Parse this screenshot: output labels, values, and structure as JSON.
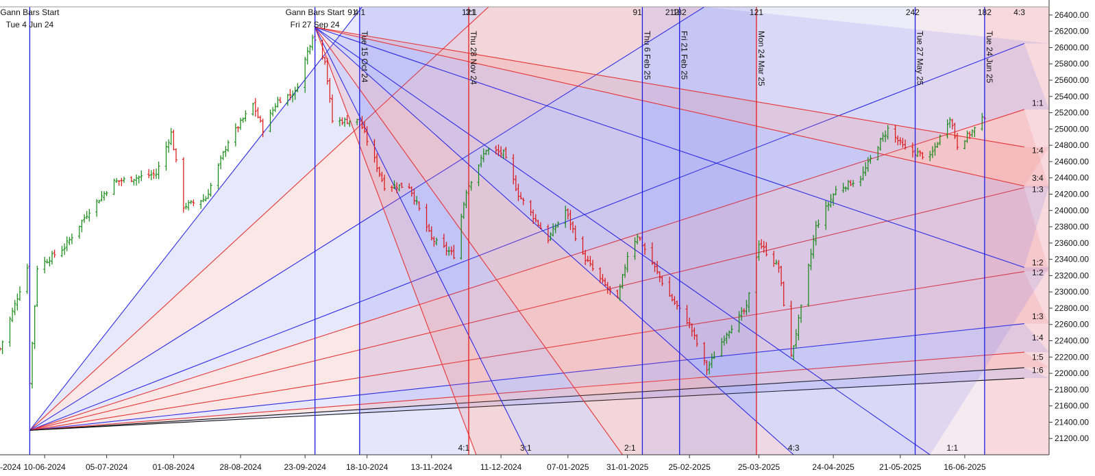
{
  "chart_data": {
    "type": "ohlc",
    "title": "",
    "y_axis": {
      "position": "right",
      "ylim": [
        21000,
        26500
      ],
      "ticks": [
        21200,
        21400,
        21600,
        21800,
        22000,
        22200,
        22400,
        22600,
        22800,
        23000,
        23200,
        23400,
        23600,
        23800,
        24000,
        24200,
        24400,
        24600,
        24800,
        25000,
        25200,
        25400,
        25600,
        25800,
        26000,
        26200,
        26400
      ]
    },
    "x_axis": {
      "range": [
        "2024-05-23",
        "2025-07-20"
      ],
      "ticks": [
        "2024-05-16",
        "2024-06-10",
        "2024-07-05",
        "2024-08-01",
        "2024-08-28",
        "2024-09-23",
        "2024-10-18",
        "2024-11-13",
        "2024-12-11",
        "2025-01-07",
        "2025-01-31",
        "2025-02-25",
        "2025-03-25",
        "2025-04-24",
        "2025-05-21",
        "2025-06-16"
      ],
      "tick_labels": [
        "-2024",
        "10-06-2024",
        "05-07-2024",
        "01-08-2024",
        "28-08-2024",
        "23-09-2024",
        "18-10-2024",
        "13-11-2024",
        "11-12-2024",
        "07-01-2025",
        "31-01-2025",
        "25-02-2025",
        "25-03-2025",
        "24-04-2025",
        "21-05-2025",
        "16-06-2025"
      ]
    },
    "price_path": [
      [
        "2024-05-23",
        22300
      ],
      [
        "2024-06-03",
        23300
      ],
      [
        "2024-06-04",
        21900
      ],
      [
        "2024-06-07",
        23300
      ],
      [
        "2024-06-18",
        23550
      ],
      [
        "2024-06-28",
        24000
      ],
      [
        "2024-07-08",
        24350
      ],
      [
        "2024-07-25",
        24450
      ],
      [
        "2024-07-31",
        24950
      ],
      [
        "2024-08-05",
        24050
      ],
      [
        "2024-08-14",
        24150
      ],
      [
        "2024-08-23",
        24850
      ],
      [
        "2024-09-02",
        25300
      ],
      [
        "2024-09-06",
        25000
      ],
      [
        "2024-09-12",
        25350
      ],
      [
        "2024-09-19",
        25450
      ],
      [
        "2024-09-26",
        26150
      ],
      [
        "2024-10-01",
        25850
      ],
      [
        "2024-10-04",
        25100
      ],
      [
        "2024-10-15",
        25100
      ],
      [
        "2024-10-25",
        24300
      ],
      [
        "2024-11-04",
        24300
      ],
      [
        "2024-11-13",
        23650
      ],
      [
        "2024-11-22",
        23450
      ],
      [
        "2024-11-27",
        24250
      ],
      [
        "2024-12-05",
        24750
      ],
      [
        "2024-12-12",
        24700
      ],
      [
        "2024-12-18",
        24200
      ],
      [
        "2024-12-30",
        23650
      ],
      [
        "2025-01-06",
        24000
      ],
      [
        "2025-01-13",
        23450
      ],
      [
        "2025-01-20",
        23150
      ],
      [
        "2025-01-27",
        22900
      ],
      [
        "2025-01-31",
        23450
      ],
      [
        "2025-02-04",
        23700
      ],
      [
        "2025-02-10",
        23350
      ],
      [
        "2025-02-17",
        22950
      ],
      [
        "2025-02-25",
        22600
      ],
      [
        "2025-03-04",
        22050
      ],
      [
        "2025-03-12",
        22500
      ],
      [
        "2025-03-20",
        22800
      ],
      [
        "2025-03-25",
        23600
      ],
      [
        "2025-04-02",
        23300
      ],
      [
        "2025-04-07",
        22200
      ],
      [
        "2025-04-11",
        22800
      ],
      [
        "2025-04-17",
        23800
      ],
      [
        "2025-04-25",
        24250
      ],
      [
        "2025-05-05",
        24400
      ],
      [
        "2025-05-12",
        24800
      ],
      [
        "2025-05-16",
        25000
      ],
      [
        "2025-05-23",
        24750
      ],
      [
        "2025-06-02",
        24650
      ],
      [
        "2025-06-10",
        25150
      ],
      [
        "2025-06-13",
        24800
      ],
      [
        "2025-06-20",
        25000
      ],
      [
        "2025-06-25",
        25200
      ]
    ],
    "vertical_markers": [
      {
        "date": "2024-06-04",
        "label": "Tue 4 Jun 24",
        "header": "Gann Bars Start",
        "color": "#1a1ae6"
      },
      {
        "date": "2024-09-27",
        "label": "Fri 27 Sep 24",
        "header": "Gann Bars Start",
        "color": "#1a1ae6"
      },
      {
        "date": "2024-10-15",
        "label": "Tue 15 Oct 24",
        "color": "#1a1ae6"
      },
      {
        "date": "2024-11-28",
        "label": "Thu 28 Nov 24",
        "color": "#e61a1a"
      },
      {
        "date": "2025-02-06",
        "label": "Thu 6 Feb 25",
        "color": "#1a1ae6"
      },
      {
        "date": "2025-02-21",
        "label": "Fri 21 Feb 25",
        "color": "#1a1ae6"
      },
      {
        "date": "2025-03-24",
        "label": "Mon 24 Mar 25",
        "color": "#e61a1a"
      },
      {
        "date": "2025-05-27",
        "label": "Tue 27 May 25",
        "color": "#1a1ae6"
      },
      {
        "date": "2025-06-24",
        "label": "Tue 24 Jun 25",
        "color": "#1a1ae6"
      }
    ],
    "top_counts": [
      {
        "date": "2024-10-12",
        "label": "91"
      },
      {
        "date": "2024-10-15",
        "label": "4:1"
      },
      {
        "date": "2024-11-28",
        "label": "121"
      },
      {
        "date": "2024-11-29",
        "label": "3:1"
      },
      {
        "date": "2025-02-04",
        "label": "91"
      },
      {
        "date": "2025-02-18",
        "label": "212"
      },
      {
        "date": "2025-02-21",
        "label": "182"
      },
      {
        "date": "2025-03-24",
        "label": "121"
      },
      {
        "date": "2025-05-26",
        "label": "242"
      },
      {
        "date": "2025-06-24",
        "label": "182"
      },
      {
        "date": "2025-07-08",
        "label": "4:3"
      }
    ],
    "bottom_labels": [
      {
        "date": "2024-11-26",
        "label": "4:1"
      },
      {
        "date": "2024-12-21",
        "label": "3:1"
      },
      {
        "date": "2025-02-01",
        "label": "2:1"
      },
      {
        "date": "2025-04-08",
        "label": "4:3"
      },
      {
        "date": "2025-06-11",
        "label": "1:1"
      }
    ],
    "right_ratio_labels": [
      {
        "y": 25260,
        "label": "1:1"
      },
      {
        "y": 24680,
        "label": "1:4"
      },
      {
        "y": 24340,
        "label": "3:4"
      },
      {
        "y": 24200,
        "label": "1:3"
      },
      {
        "y": 23300,
        "label": "1:2"
      },
      {
        "y": 23180,
        "label": "1:2"
      },
      {
        "y": 22640,
        "label": "1:3"
      },
      {
        "y": 22380,
        "label": "1:4"
      },
      {
        "y": 22140,
        "label": "1:5"
      },
      {
        "y": 21980,
        "label": "1:6"
      }
    ],
    "gann_fans": [
      {
        "origin": [
          "2024-06-04",
          21300
        ],
        "lines": [
          {
            "to": [
              "2024-10-16",
              26500
            ],
            "color": "#2a2ae6"
          },
          {
            "to": [
              "2024-12-06",
              26500
            ],
            "color": "#e63333"
          },
          {
            "to": [
              "2025-03-03",
              26500
            ],
            "color": "#2a2ae6"
          },
          {
            "to": [
              "2025-07-10",
              26050
            ],
            "color": "#2a2ae6"
          },
          {
            "to": [
              "2025-07-10",
              25240
            ],
            "color": "#e63333"
          },
          {
            "to": [
              "2025-07-10",
              24280
            ],
            "color": "#e63333"
          },
          {
            "to": [
              "2025-07-10",
              23250
            ],
            "color": "#e63333"
          },
          {
            "to": [
              "2025-07-10",
              22610
            ],
            "color": "#2a2ae6"
          },
          {
            "to": [
              "2025-07-10",
              22260
            ],
            "color": "#e63333"
          },
          {
            "to": [
              "2025-07-10",
              22070
            ],
            "color": "#111111"
          },
          {
            "to": [
              "2025-07-10",
              21940
            ],
            "color": "#111111"
          }
        ]
      },
      {
        "origin": [
          "2024-09-27",
          26250
        ],
        "lines": [
          {
            "to": [
              "2024-12-01",
              21000
            ],
            "color": "#e63333"
          },
          {
            "to": [
              "2024-12-22",
              21000
            ],
            "color": "#2a2ae6"
          },
          {
            "to": [
              "2025-01-29",
              21000
            ],
            "color": "#e63333"
          },
          {
            "to": [
              "2025-04-08",
              21000
            ],
            "color": "#2a2ae6"
          },
          {
            "to": [
              "2025-06-02",
              21000
            ],
            "color": "#2a2ae6"
          },
          {
            "to": [
              "2025-07-10",
              23300
            ],
            "color": "#2a2ae6"
          },
          {
            "to": [
              "2025-07-10",
              24300
            ],
            "color": "#e63333"
          },
          {
            "to": [
              "2025-07-10",
              24780
            ],
            "color": "#e63333"
          }
        ]
      }
    ],
    "bar_colors": {
      "up": "#118811",
      "down": "#dd1111"
    }
  }
}
